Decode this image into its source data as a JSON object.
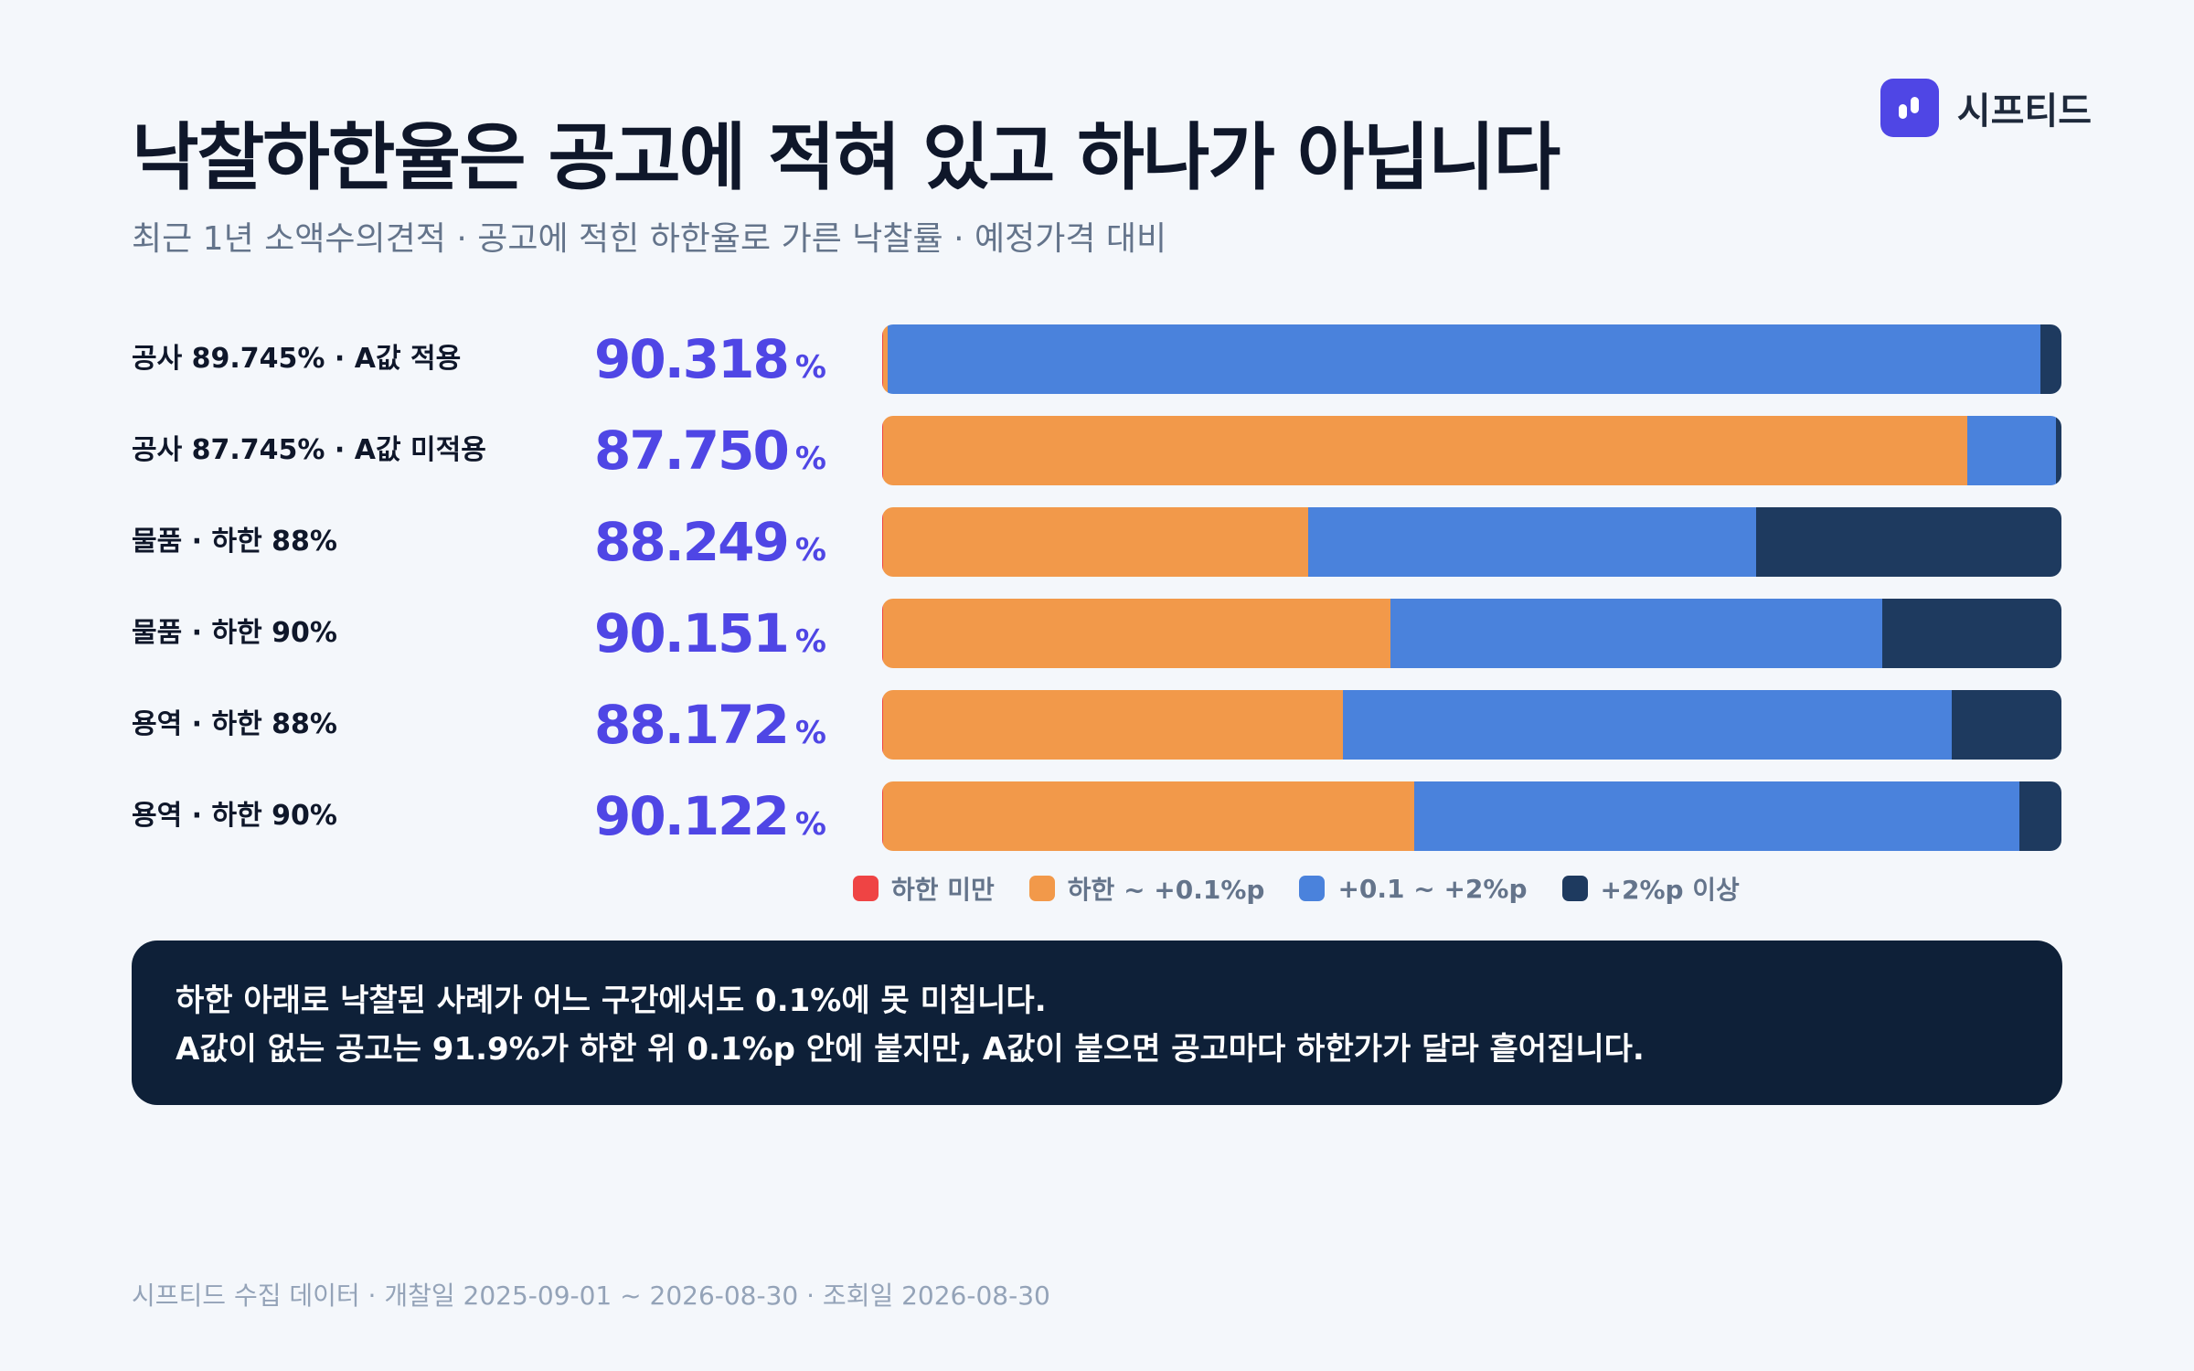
{
  "header": {
    "title": "낙찰하한율은 공고에 적혀 있고 하나가 아닙니다",
    "subtitle": "최근 1년 소액수의견적 · 공고에 적힌 하한율로 가른 낙찰률 · 예정가격 대비"
  },
  "brand": {
    "name": "시프티드",
    "color": "#4f46e5",
    "icon": "logo-mark-icon"
  },
  "chart_data": {
    "type": "bar",
    "orientation": "horizontal",
    "stacked": true,
    "normalized": true,
    "title": "낙찰하한율은 공고에 적혀 있고 하나가 아닙니다",
    "subtitle": "최근 1년 소액수의견적 · 공고에 적힌 하한율로 가른 낙찰률 · 예정가격 대비",
    "categories": [
      "공사 89.745% · A값 적용",
      "공사 87.745% · A값 미적용",
      "물품 · 하한 88%",
      "물품 · 하한 90%",
      "용역 · 하한 88%",
      "용역 · 하한 90%"
    ],
    "row_values": [
      "90.318",
      "87.750",
      "88.249",
      "90.151",
      "88.172",
      "90.122"
    ],
    "value_unit": "%",
    "legend_position": "bottom",
    "series": [
      {
        "name": "하한 미만",
        "color": "#ef4444",
        "values": [
          0.1,
          0.1,
          0.1,
          0.1,
          0.1,
          0.1
        ]
      },
      {
        "name": "하한 ~ +0.1%p",
        "color": "#f2994a",
        "values": [
          0.4,
          91.9,
          36.0,
          43.0,
          39.0,
          45.0
        ]
      },
      {
        "name": "+0.1 ~ +2%p",
        "color": "#4a82dc",
        "values": [
          97.7,
          7.5,
          38.0,
          41.7,
          51.6,
          51.3
        ]
      },
      {
        "name": "+2%p 이상",
        "color": "#1e3a5f",
        "values": [
          1.8,
          0.5,
          25.9,
          15.2,
          9.3,
          3.6
        ]
      }
    ]
  },
  "callout": {
    "line1": "하한 아래로 낙찰된 사례가 어느 구간에서도 0.1%에 못 미칩니다.",
    "line2": "A값이 없는 공고는 91.9%가 하한 위 0.1%p 안에 붙지만, A값이 붙으면 공고마다 하한가가 달라 흩어집니다."
  },
  "footer": {
    "source": "시프티드 수집 데이터 · 개찰일 2025-09-01 ~ 2026-08-30 · 조회일 2026-08-30"
  }
}
